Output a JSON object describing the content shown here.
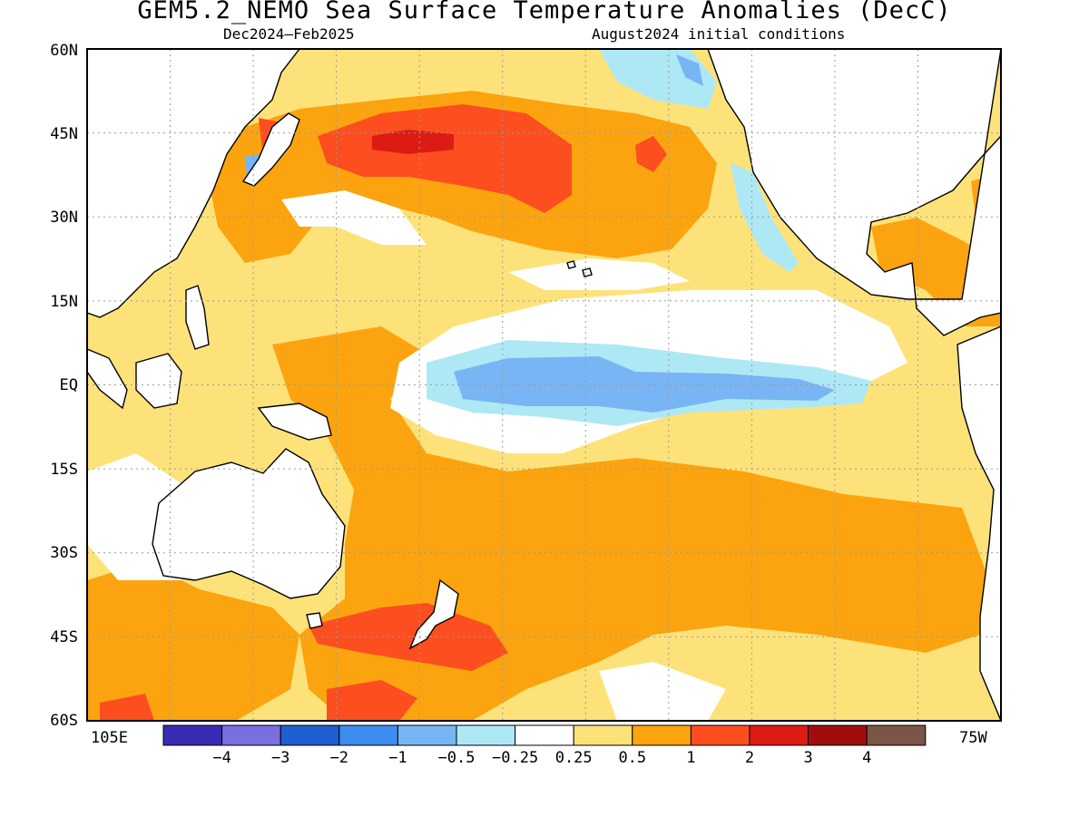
{
  "title": "GEM5.2_NEMO Sea Surface Temperature Anomalies (DecC)",
  "subtitle_left": "Dec2024—Feb2025",
  "subtitle_right": "August2024 initial conditions",
  "y_axis_labels": [
    "60N",
    "45N",
    "30N",
    "15N",
    "EQ",
    "15S",
    "30S",
    "45S",
    "60S"
  ],
  "x_axis_labels": {
    "left": "105E",
    "right": "75W"
  },
  "colorbar": {
    "colors": [
      "#3a2bb3",
      "#7b6ee0",
      "#1f5fcf",
      "#3d8cf0",
      "#78b5f5",
      "#aee8f5",
      "#ffffff",
      "#fde27a",
      "#fba40f",
      "#fc4e1e",
      "#dc1c14",
      "#a10d0d",
      "#7a5548"
    ],
    "labels": [
      "−4",
      "−3",
      "−2",
      "−1",
      "−0.5",
      "−0.25",
      "0.25",
      "0.5",
      "1",
      "2",
      "3",
      "4"
    ]
  },
  "map": {
    "region": "Pacific Ocean",
    "lat_range": [
      -60,
      60
    ],
    "lon_range": [
      "105E",
      "75W"
    ],
    "grid": true,
    "coastlines": true
  }
}
